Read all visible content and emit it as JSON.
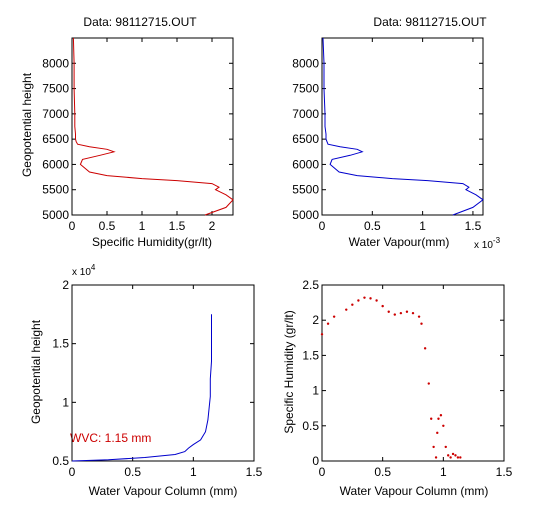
{
  "chart_data": [
    {
      "type": "line",
      "title": "Data: 98112715.OUT",
      "xlabel": "Specific Humidity(gr/lt)",
      "ylabel": "Geopotential height",
      "xlim": [
        0,
        2.3
      ],
      "ylim": [
        5000,
        8500
      ],
      "xticks": [
        0,
        0.5,
        1,
        1.5,
        2
      ],
      "xtick_labels": [
        "0",
        "0.5",
        "1",
        "1.5",
        "2"
      ],
      "yticks": [
        5000,
        5500,
        6000,
        6500,
        7000,
        7500,
        8000
      ],
      "ytick_labels": [
        "5000",
        "5500",
        "6000",
        "6500",
        "7000",
        "7500",
        "8000"
      ],
      "color": "#cc0000",
      "series": [
        {
          "x": [
            0.02,
            0.03,
            0.03,
            0.04,
            0.04,
            0.05,
            0.05,
            0.06,
            0.08,
            0.25,
            0.5,
            0.6,
            0.4,
            0.15,
            0.12,
            0.25,
            0.5,
            1.0,
            1.5,
            2.0,
            2.1,
            2.05,
            2.2,
            2.3,
            2.2,
            1.9
          ],
          "y": [
            8500,
            8000,
            7500,
            7000,
            6750,
            6600,
            6500,
            6450,
            6400,
            6350,
            6300,
            6250,
            6180,
            6100,
            6000,
            5850,
            5780,
            5720,
            5680,
            5620,
            5550,
            5500,
            5400,
            5300,
            5150,
            5000
          ]
        }
      ]
    },
    {
      "type": "line",
      "title": "Data: 98112715.OUT",
      "xlabel": "Water Vapour(mm)",
      "ylabel": "",
      "x_multiplier_label": "x 10",
      "x_multiplier_exp": "-3",
      "xlim": [
        0,
        1.6
      ],
      "ylim": [
        5000,
        8500
      ],
      "xticks": [
        0,
        0.5,
        1,
        1.5
      ],
      "xtick_labels": [
        "0",
        "0.5",
        "1",
        "1.5"
      ],
      "yticks": [
        5000,
        5500,
        6000,
        6500,
        7000,
        7500,
        8000
      ],
      "ytick_labels": [
        "5000",
        "5500",
        "6000",
        "6500",
        "7000",
        "7500",
        "8000"
      ],
      "color": "#0000cc",
      "series": [
        {
          "x": [
            0.01,
            0.02,
            0.02,
            0.03,
            0.03,
            0.04,
            0.04,
            0.05,
            0.06,
            0.18,
            0.35,
            0.4,
            0.28,
            0.1,
            0.08,
            0.17,
            0.35,
            0.7,
            1.05,
            1.4,
            1.46,
            1.43,
            1.53,
            1.6,
            1.5,
            1.3
          ],
          "y": [
            8500,
            8000,
            7500,
            7000,
            6750,
            6600,
            6500,
            6450,
            6400,
            6350,
            6300,
            6250,
            6180,
            6100,
            6000,
            5850,
            5780,
            5720,
            5680,
            5620,
            5550,
            5500,
            5400,
            5300,
            5150,
            5000
          ]
        }
      ]
    },
    {
      "type": "line",
      "title": "",
      "xlabel": "Water Vapour Column (mm)",
      "ylabel": "Geopotential height",
      "y_multiplier_label": "x 10",
      "y_multiplier_exp": "4",
      "annotation": "WVC: 1.15 mm",
      "xlim": [
        0,
        1.5
      ],
      "ylim": [
        0.5,
        2
      ],
      "xticks": [
        0,
        0.5,
        1,
        1.5
      ],
      "xtick_labels": [
        "0",
        "0.5",
        "1",
        "1.5"
      ],
      "yticks": [
        0.5,
        1,
        1.5,
        2
      ],
      "ytick_labels": [
        "0.5",
        "1",
        "1.5",
        "2"
      ],
      "color": "#0000cc",
      "series": [
        {
          "x": [
            0.0,
            0.3,
            0.6,
            0.85,
            0.93,
            0.96,
            1.0,
            1.06,
            1.1,
            1.12,
            1.13,
            1.14,
            1.14,
            1.15,
            1.15,
            1.15
          ],
          "y": [
            0.5,
            0.51,
            0.53,
            0.555,
            0.58,
            0.61,
            0.64,
            0.68,
            0.75,
            0.85,
            0.95,
            1.05,
            1.2,
            1.35,
            1.5,
            1.75
          ]
        }
      ]
    },
    {
      "type": "scatter",
      "title": "",
      "xlabel": "Water Vapour Column (mm)",
      "ylabel": "Specific Humidity (gr/lt)",
      "xlim": [
        0,
        1.5
      ],
      "ylim": [
        0,
        2.5
      ],
      "xticks": [
        0,
        0.5,
        1,
        1.5
      ],
      "xtick_labels": [
        "0",
        "0.5",
        "1",
        "1.5"
      ],
      "yticks": [
        0,
        0.5,
        1,
        1.5,
        2,
        2.5
      ],
      "ytick_labels": [
        "0",
        "0.5",
        "1",
        "1.5",
        "2",
        "2.5"
      ],
      "color": "#cc0000",
      "series": [
        {
          "x": [
            0.0,
            0.05,
            0.1,
            0.2,
            0.25,
            0.3,
            0.35,
            0.4,
            0.45,
            0.5,
            0.55,
            0.6,
            0.65,
            0.7,
            0.75,
            0.8,
            0.82,
            0.85,
            0.88,
            0.9,
            0.92,
            0.94,
            0.95,
            0.96,
            0.98,
            1.0,
            1.02,
            1.04,
            1.06,
            1.08,
            1.1,
            1.12,
            1.14
          ],
          "y": [
            1.8,
            1.95,
            2.05,
            2.15,
            2.22,
            2.28,
            2.32,
            2.31,
            2.28,
            2.2,
            2.12,
            2.08,
            2.1,
            2.12,
            2.1,
            2.05,
            1.95,
            1.6,
            1.1,
            0.6,
            0.2,
            0.05,
            0.4,
            0.6,
            0.65,
            0.5,
            0.2,
            0.08,
            0.05,
            0.1,
            0.08,
            0.05,
            0.05
          ]
        }
      ]
    }
  ]
}
